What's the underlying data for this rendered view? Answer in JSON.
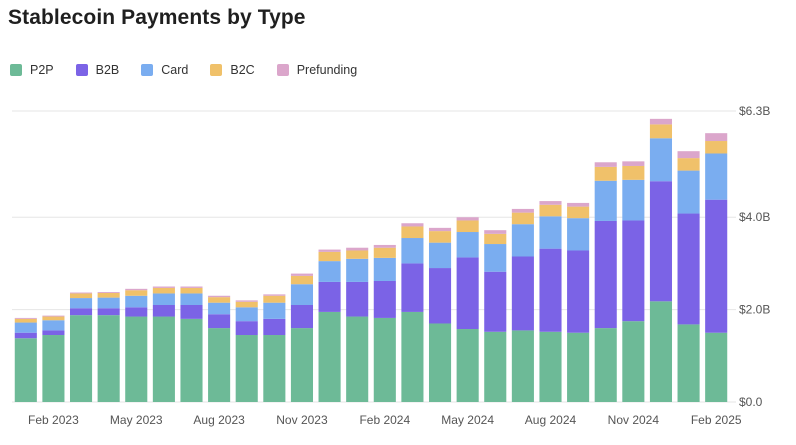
{
  "chart_data": {
    "type": "bar",
    "stacked": true,
    "title": "Stablecoin Payments by Type",
    "categories": [
      "Jan 2023",
      "Feb 2023",
      "Mar 2023",
      "Apr 2023",
      "May 2023",
      "Jun 2023",
      "Jul 2023",
      "Aug 2023",
      "Sep 2023",
      "Oct 2023",
      "Nov 2023",
      "Dec 2023",
      "Jan 2024",
      "Feb 2024",
      "Mar 2024",
      "Apr 2024",
      "May 2024",
      "Jun 2024",
      "Jul 2024",
      "Aug 2024",
      "Sep 2024",
      "Oct 2024",
      "Nov 2024",
      "Dec 2024",
      "Jan 2025",
      "Feb 2025"
    ],
    "x_tick_labels": [
      "Feb 2023",
      "May 2023",
      "Aug 2023",
      "Nov 2023",
      "Feb 2024",
      "May 2024",
      "Aug 2024",
      "Nov 2024",
      "Feb 2025"
    ],
    "y_tick_labels": [
      "$0.0",
      "$2.0B",
      "$4.0B",
      "$6.3B"
    ],
    "y_tick_values": [
      0,
      2.0,
      4.0,
      6.3
    ],
    "ylim": [
      0,
      6.3
    ],
    "grid": true,
    "legend_position": "top-left",
    "series": [
      {
        "name": "P2P",
        "color": "#6dba97",
        "values": [
          1.38,
          1.45,
          1.88,
          1.88,
          1.85,
          1.85,
          1.8,
          1.6,
          1.45,
          1.45,
          1.6,
          1.95,
          1.85,
          1.82,
          1.95,
          1.7,
          1.58,
          1.52,
          1.55,
          1.52,
          1.5,
          1.6,
          1.75,
          2.18,
          1.68,
          1.5
        ]
      },
      {
        "name": "B2B",
        "color": "#7b63e6",
        "values": [
          0.12,
          0.1,
          0.15,
          0.15,
          0.2,
          0.25,
          0.3,
          0.3,
          0.3,
          0.35,
          0.5,
          0.65,
          0.75,
          0.8,
          1.05,
          1.2,
          1.55,
          1.3,
          1.6,
          1.8,
          1.78,
          2.32,
          2.18,
          2.6,
          2.4,
          2.88
        ]
      },
      {
        "name": "Card",
        "color": "#7aadf0",
        "values": [
          0.22,
          0.22,
          0.22,
          0.23,
          0.25,
          0.25,
          0.25,
          0.25,
          0.3,
          0.35,
          0.45,
          0.45,
          0.5,
          0.5,
          0.55,
          0.55,
          0.55,
          0.6,
          0.7,
          0.7,
          0.7,
          0.87,
          0.88,
          0.93,
          0.93,
          1.0
        ]
      },
      {
        "name": "B2C",
        "color": "#f0c16a",
        "values": [
          0.08,
          0.08,
          0.1,
          0.1,
          0.12,
          0.12,
          0.12,
          0.12,
          0.12,
          0.15,
          0.18,
          0.2,
          0.18,
          0.22,
          0.25,
          0.25,
          0.25,
          0.22,
          0.25,
          0.25,
          0.25,
          0.3,
          0.3,
          0.3,
          0.27,
          0.27
        ]
      },
      {
        "name": "Prefunding",
        "color": "#dba6cb",
        "values": [
          0.02,
          0.02,
          0.02,
          0.02,
          0.03,
          0.03,
          0.03,
          0.03,
          0.03,
          0.03,
          0.05,
          0.05,
          0.06,
          0.06,
          0.07,
          0.07,
          0.07,
          0.08,
          0.08,
          0.08,
          0.08,
          0.1,
          0.1,
          0.12,
          0.15,
          0.17
        ]
      }
    ]
  }
}
